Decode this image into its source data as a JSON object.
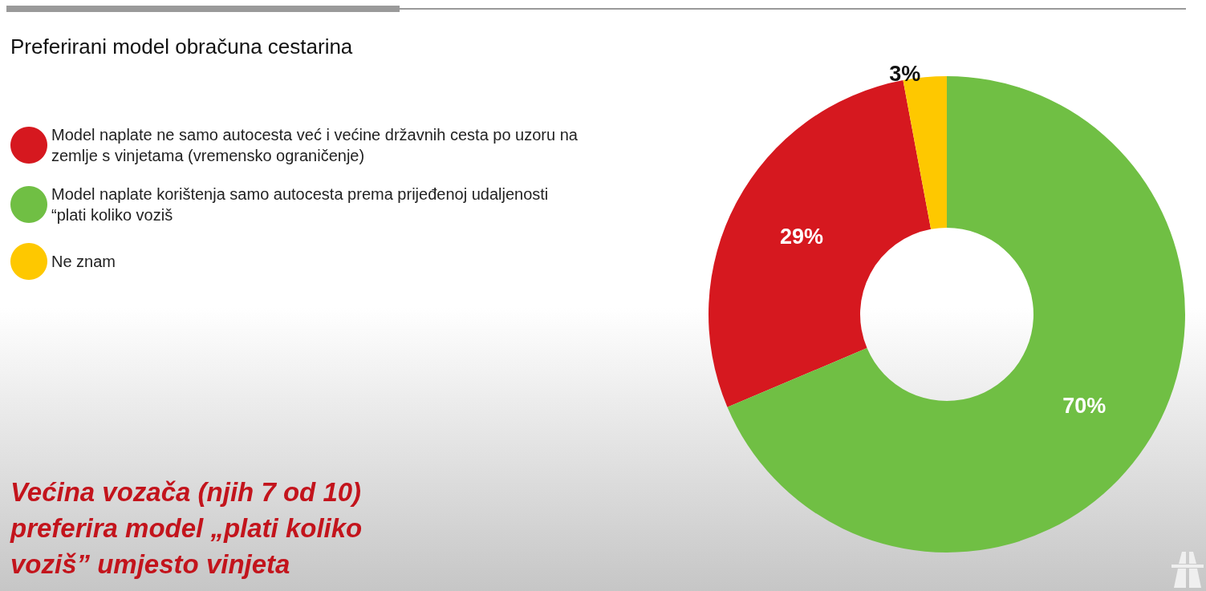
{
  "chart_data": {
    "type": "donut",
    "title": "Preferirani model obračuna cestarina",
    "categories": [
      "Model naplate ne samo autocesta već i većine državnih cesta po uzoru na zemlje s vinjetama (vremensko ograničenje)",
      "Model naplate korištenja samo autocesta prema prijeđenoj udaljenosti “plati koliko voziš",
      "Ne znam"
    ],
    "values": [
      29,
      70,
      3
    ],
    "colors": [
      "#d6181f",
      "#70bf44",
      "#fec800"
    ],
    "value_labels": [
      "29%",
      "70%",
      "3%"
    ],
    "legend": "left",
    "annotations": [
      "Većina vozača (njih 7 od 10) preferira model „plati koliko voziš” umjesto vinjeta"
    ]
  }
}
